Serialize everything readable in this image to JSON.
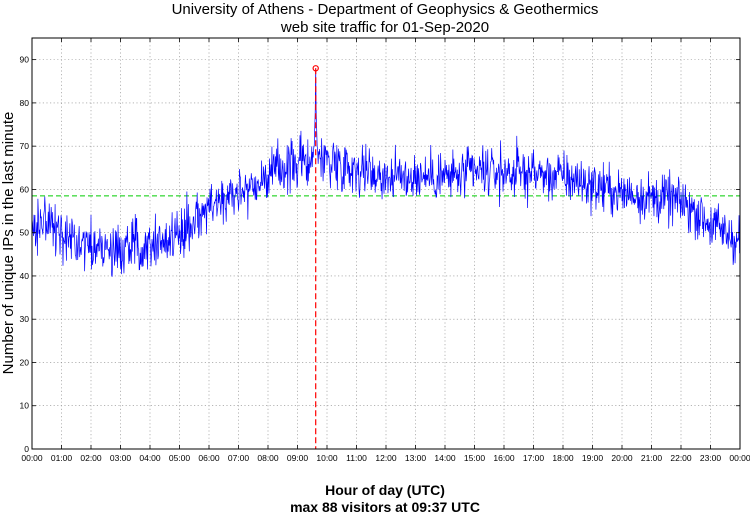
{
  "chart_data": {
    "type": "line",
    "title": "University of Athens - Department of Geophysics & Geothermics",
    "subtitle": "web site traffic for 01-Sep-2020",
    "xlabel": "Hour of day (UTC)",
    "ylabel": "Number of unique IPs in the last minute",
    "annotation": "max 88 visitors at 09:37 UTC",
    "xlim": [
      0,
      24
    ],
    "ylim": [
      0,
      95
    ],
    "grid": true,
    "x_ticks": [
      "00:00",
      "01:00",
      "02:00",
      "03:00",
      "04:00",
      "05:00",
      "06:00",
      "07:00",
      "08:00",
      "09:00",
      "10:00",
      "11:00",
      "12:00",
      "13:00",
      "14:00",
      "15:00",
      "16:00",
      "17:00",
      "18:00",
      "19:00",
      "20:00",
      "21:00",
      "22:00",
      "23:00",
      "00:00"
    ],
    "y_ticks": [
      0,
      10,
      20,
      30,
      40,
      50,
      60,
      70,
      80,
      90
    ],
    "mean_value": 58.5,
    "max_point": {
      "x": 9.617,
      "y": 88
    },
    "series_color": "#0000ff",
    "mean_color": "#00cc00",
    "max_color": "#ff0000",
    "hourly_profile": {
      "x": [
        0,
        0.5,
        1,
        1.5,
        2,
        2.5,
        3,
        3.5,
        4,
        4.5,
        5,
        5.5,
        6,
        6.5,
        7,
        7.5,
        8,
        8.5,
        9,
        9.5,
        10,
        10.5,
        11,
        11.5,
        12,
        12.5,
        13,
        13.5,
        14,
        14.5,
        15,
        15.5,
        16,
        16.5,
        17,
        17.5,
        18,
        18.5,
        19,
        19.5,
        20,
        20.5,
        21,
        21.5,
        22,
        22.5,
        23,
        23.5,
        24
      ],
      "y": [
        52,
        52,
        49,
        48,
        47,
        46,
        46,
        47,
        48,
        48,
        50,
        53,
        56,
        58,
        60,
        61,
        63,
        65,
        66,
        67,
        67,
        66,
        65,
        64,
        63,
        63,
        63,
        63,
        63,
        63,
        64,
        64,
        64,
        64,
        64,
        63,
        63,
        62,
        61,
        60,
        59,
        59,
        58,
        58,
        57,
        55,
        52,
        50,
        48
      ]
    }
  }
}
